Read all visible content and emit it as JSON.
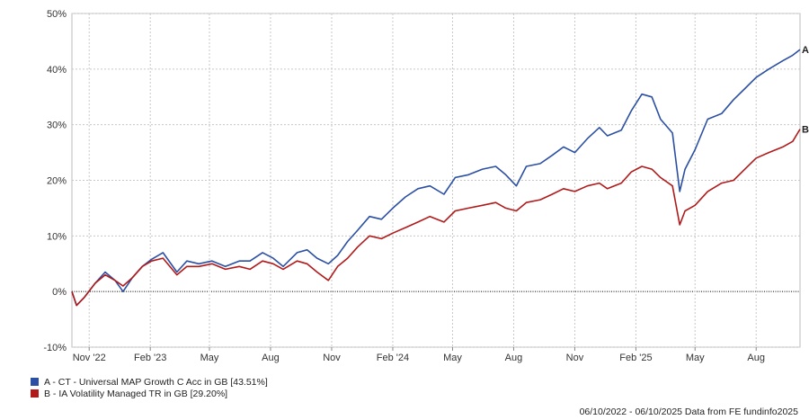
{
  "chart_data": {
    "type": "line",
    "x_start": "2022-10-06",
    "x_end": "2025-10-06",
    "xticks": [
      {
        "date": "2022-11-01",
        "label": "Nov '22"
      },
      {
        "date": "2023-02-01",
        "label": "Feb '23"
      },
      {
        "date": "2023-05-01",
        "label": "May"
      },
      {
        "date": "2023-08-01",
        "label": "Aug"
      },
      {
        "date": "2023-11-01",
        "label": "Nov"
      },
      {
        "date": "2024-02-01",
        "label": "Feb '24"
      },
      {
        "date": "2024-05-01",
        "label": "May"
      },
      {
        "date": "2024-08-01",
        "label": "Aug"
      },
      {
        "date": "2024-11-01",
        "label": "Nov"
      },
      {
        "date": "2025-02-01",
        "label": "Feb '25"
      },
      {
        "date": "2025-05-01",
        "label": "May"
      },
      {
        "date": "2025-08-01",
        "label": "Aug"
      }
    ],
    "yticks": [
      -10,
      0,
      10,
      20,
      30,
      40,
      50
    ],
    "ytick_labels": [
      "-10%",
      "0%",
      "10%",
      "20%",
      "30%",
      "40%",
      "50%"
    ],
    "ylim": [
      -10,
      50
    ],
    "grid": true,
    "zero_line": "dotted",
    "series": [
      {
        "name": "A - CT - Universal MAP Growth C Acc in GB [43.51%]",
        "end_label": "A",
        "color": "#2b4fa2",
        "points": [
          [
            "2022-10-06",
            0
          ],
          [
            "2022-10-13",
            -2.5
          ],
          [
            "2022-10-25",
            -1.0
          ],
          [
            "2022-11-10",
            1.5
          ],
          [
            "2022-11-25",
            3.5
          ],
          [
            "2022-12-10",
            2.0
          ],
          [
            "2022-12-22",
            0
          ],
          [
            "2023-01-05",
            2.5
          ],
          [
            "2023-01-20",
            4.5
          ],
          [
            "2023-02-03",
            5.8
          ],
          [
            "2023-02-20",
            7.0
          ],
          [
            "2023-03-13",
            3.5
          ],
          [
            "2023-03-28",
            5.5
          ],
          [
            "2023-04-15",
            5.0
          ],
          [
            "2023-05-05",
            5.5
          ],
          [
            "2023-05-25",
            4.5
          ],
          [
            "2023-06-15",
            5.5
          ],
          [
            "2023-07-01",
            5.5
          ],
          [
            "2023-07-20",
            7.0
          ],
          [
            "2023-08-05",
            6.0
          ],
          [
            "2023-08-20",
            4.5
          ],
          [
            "2023-09-10",
            7.0
          ],
          [
            "2023-09-25",
            7.5
          ],
          [
            "2023-10-10",
            6.0
          ],
          [
            "2023-10-27",
            5.0
          ],
          [
            "2023-11-10",
            6.5
          ],
          [
            "2023-11-25",
            9.0
          ],
          [
            "2023-12-10",
            11.0
          ],
          [
            "2023-12-28",
            13.5
          ],
          [
            "2024-01-15",
            13.0
          ],
          [
            "2024-02-01",
            15.0
          ],
          [
            "2024-02-20",
            17.0
          ],
          [
            "2024-03-10",
            18.5
          ],
          [
            "2024-03-28",
            19.0
          ],
          [
            "2024-04-18",
            17.5
          ],
          [
            "2024-05-05",
            20.5
          ],
          [
            "2024-05-25",
            21.0
          ],
          [
            "2024-06-15",
            22.0
          ],
          [
            "2024-07-05",
            22.5
          ],
          [
            "2024-07-20",
            21.0
          ],
          [
            "2024-08-05",
            19.0
          ],
          [
            "2024-08-20",
            22.5
          ],
          [
            "2024-09-10",
            23.0
          ],
          [
            "2024-09-28",
            24.5
          ],
          [
            "2024-10-15",
            26.0
          ],
          [
            "2024-11-01",
            25.0
          ],
          [
            "2024-11-20",
            27.5
          ],
          [
            "2024-12-08",
            29.5
          ],
          [
            "2024-12-20",
            28.0
          ],
          [
            "2025-01-10",
            29.0
          ],
          [
            "2025-01-25",
            32.5
          ],
          [
            "2025-02-10",
            35.5
          ],
          [
            "2025-02-25",
            35.0
          ],
          [
            "2025-03-10",
            31.0
          ],
          [
            "2025-03-28",
            28.5
          ],
          [
            "2025-04-08",
            18.0
          ],
          [
            "2025-04-16",
            22.0
          ],
          [
            "2025-05-01",
            25.5
          ],
          [
            "2025-05-20",
            31.0
          ],
          [
            "2025-06-10",
            32.0
          ],
          [
            "2025-06-28",
            34.5
          ],
          [
            "2025-07-15",
            36.5
          ],
          [
            "2025-08-01",
            38.5
          ],
          [
            "2025-08-20",
            40.0
          ],
          [
            "2025-09-10",
            41.5
          ],
          [
            "2025-09-25",
            42.5
          ],
          [
            "2025-10-06",
            43.51
          ]
        ]
      },
      {
        "name": "B - IA Volatility Managed TR in GB [29.20%]",
        "end_label": "B",
        "color": "#b01a1a",
        "points": [
          [
            "2022-10-06",
            0
          ],
          [
            "2022-10-13",
            -2.5
          ],
          [
            "2022-10-25",
            -1.0
          ],
          [
            "2022-11-10",
            1.5
          ],
          [
            "2022-11-25",
            3.0
          ],
          [
            "2022-12-10",
            2.0
          ],
          [
            "2022-12-22",
            1.0
          ],
          [
            "2023-01-05",
            2.5
          ],
          [
            "2023-01-20",
            4.5
          ],
          [
            "2023-02-03",
            5.5
          ],
          [
            "2023-02-20",
            6.0
          ],
          [
            "2023-03-13",
            3.0
          ],
          [
            "2023-03-28",
            4.5
          ],
          [
            "2023-04-15",
            4.5
          ],
          [
            "2023-05-05",
            5.0
          ],
          [
            "2023-05-25",
            4.0
          ],
          [
            "2023-06-15",
            4.5
          ],
          [
            "2023-07-01",
            4.0
          ],
          [
            "2023-07-20",
            5.5
          ],
          [
            "2023-08-05",
            5.0
          ],
          [
            "2023-08-20",
            4.0
          ],
          [
            "2023-09-10",
            5.5
          ],
          [
            "2023-09-25",
            5.0
          ],
          [
            "2023-10-10",
            3.5
          ],
          [
            "2023-10-27",
            2.0
          ],
          [
            "2023-11-10",
            4.5
          ],
          [
            "2023-11-25",
            6.0
          ],
          [
            "2023-12-10",
            8.0
          ],
          [
            "2023-12-28",
            10.0
          ],
          [
            "2024-01-15",
            9.5
          ],
          [
            "2024-02-01",
            10.5
          ],
          [
            "2024-02-20",
            11.5
          ],
          [
            "2024-03-10",
            12.5
          ],
          [
            "2024-03-28",
            13.5
          ],
          [
            "2024-04-18",
            12.5
          ],
          [
            "2024-05-05",
            14.5
          ],
          [
            "2024-05-25",
            15.0
          ],
          [
            "2024-06-15",
            15.5
          ],
          [
            "2024-07-05",
            16.0
          ],
          [
            "2024-07-20",
            15.0
          ],
          [
            "2024-08-05",
            14.5
          ],
          [
            "2024-08-20",
            16.0
          ],
          [
            "2024-09-10",
            16.5
          ],
          [
            "2024-09-28",
            17.5
          ],
          [
            "2024-10-15",
            18.5
          ],
          [
            "2024-11-01",
            18.0
          ],
          [
            "2024-11-20",
            19.0
          ],
          [
            "2024-12-08",
            19.5
          ],
          [
            "2024-12-20",
            18.5
          ],
          [
            "2025-01-10",
            19.5
          ],
          [
            "2025-01-25",
            21.5
          ],
          [
            "2025-02-10",
            22.5
          ],
          [
            "2025-02-25",
            22.0
          ],
          [
            "2025-03-10",
            20.5
          ],
          [
            "2025-03-28",
            19.0
          ],
          [
            "2025-04-08",
            12.0
          ],
          [
            "2025-04-16",
            14.5
          ],
          [
            "2025-05-01",
            15.5
          ],
          [
            "2025-05-20",
            18.0
          ],
          [
            "2025-06-10",
            19.5
          ],
          [
            "2025-06-28",
            20.0
          ],
          [
            "2025-07-15",
            22.0
          ],
          [
            "2025-08-01",
            24.0
          ],
          [
            "2025-08-20",
            25.0
          ],
          [
            "2025-09-10",
            26.0
          ],
          [
            "2025-09-25",
            27.0
          ],
          [
            "2025-10-06",
            29.2
          ]
        ]
      }
    ]
  },
  "legend": [
    {
      "label": "A - CT - Universal MAP Growth C Acc in GB [43.51%]",
      "color": "#2b4fa2"
    },
    {
      "label": "B - IA Volatility Managed TR in GB [29.20%]",
      "color": "#b01a1a"
    }
  ],
  "footer": "06/10/2022 - 06/10/2025 Data from FE fundinfo2025"
}
